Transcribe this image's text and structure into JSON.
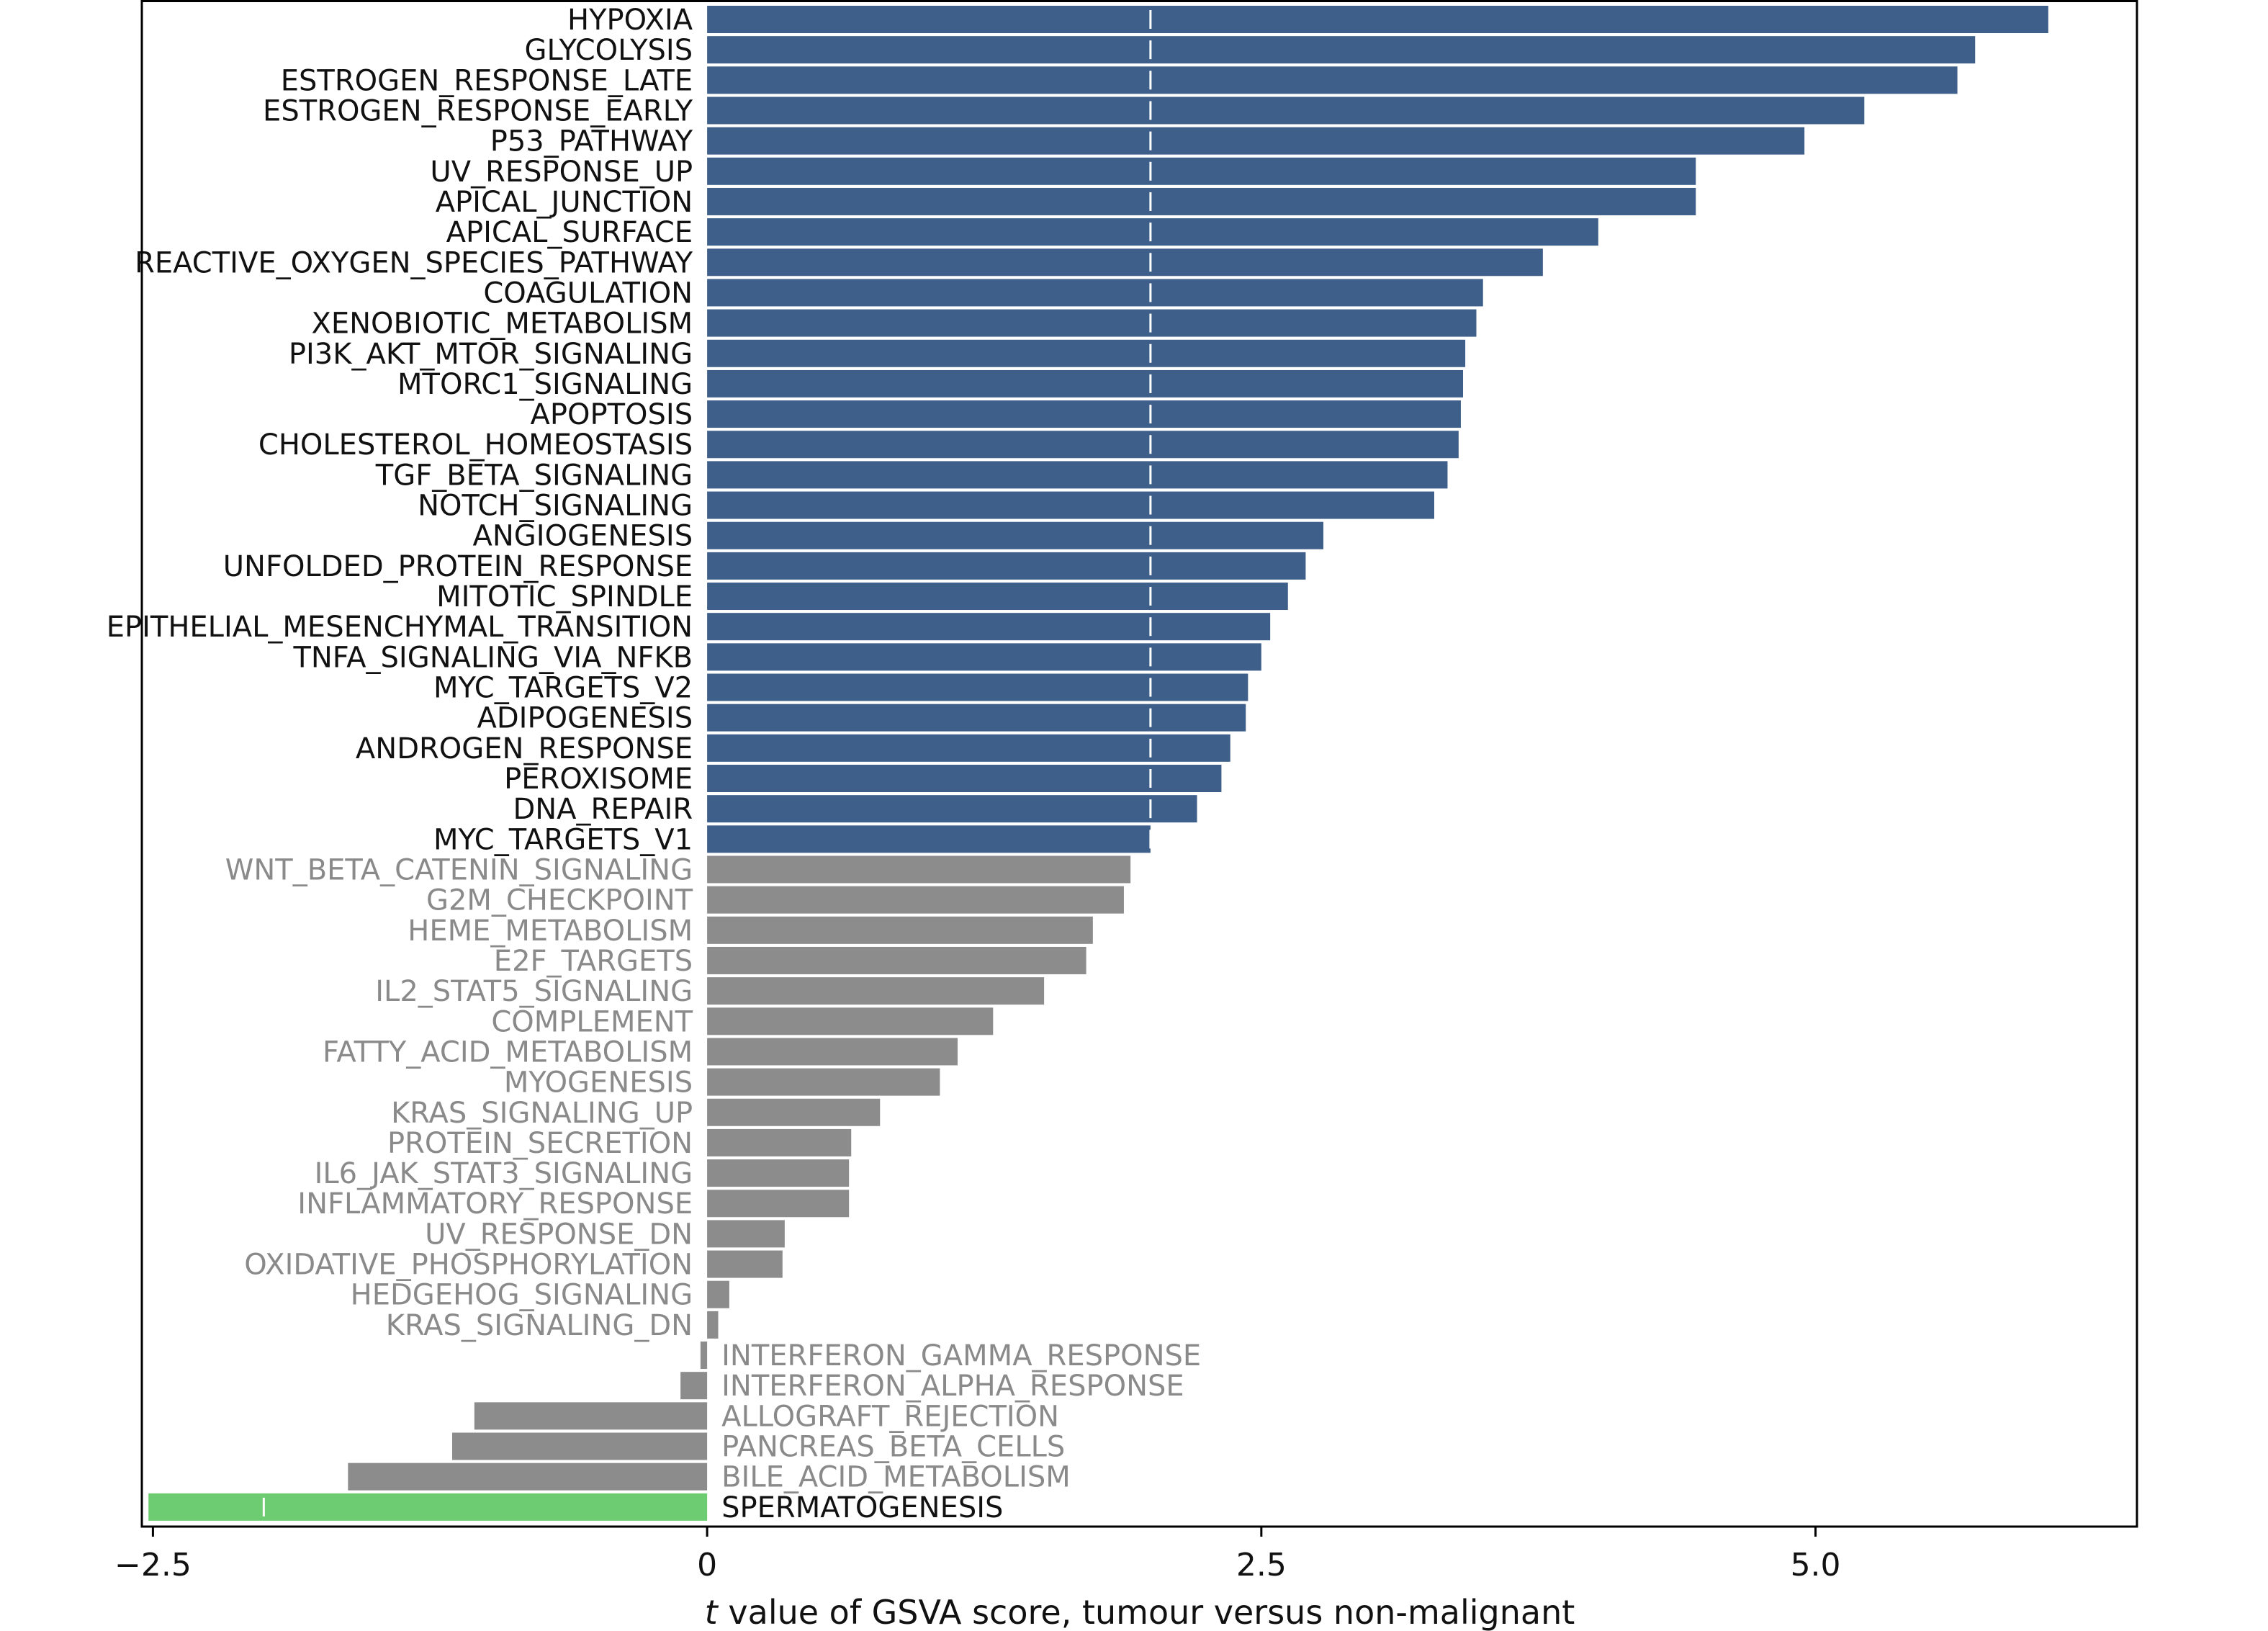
{
  "chart_data": {
    "type": "bar",
    "orientation": "horizontal",
    "title": "",
    "xlabel_prefix": "t",
    "xlabel_rest": " value of GSVA score, tumour versus non-malignant",
    "ylabel": "",
    "xlim": [
      -2.55,
      6.45
    ],
    "xticks": [
      -2.5,
      0,
      2.5,
      5.0
    ],
    "xtick_labels": [
      "−2.5",
      "0",
      "2.5",
      "5.0"
    ],
    "threshold_line": 2.0,
    "colors": {
      "significant_up": "#3e5f8a",
      "not_significant": "#8c8c8c",
      "significant_down": "#6dcc71",
      "label_significant": "#111111",
      "label_not_significant": "#8a8a8a",
      "threshold_line": "#ffffff",
      "frame": "#000000"
    },
    "categories": [
      "HYPOXIA",
      "GLYCOLYSIS",
      "ESTROGEN_RESPONSE_LATE",
      "ESTROGEN_RESPONSE_EARLY",
      "P53_PATHWAY",
      "UV_RESPONSE_UP",
      "APICAL_JUNCTION",
      "APICAL_SURFACE",
      "REACTIVE_OXYGEN_SPECIES_PATHWAY",
      "COAGULATION",
      "XENOBIOTIC_METABOLISM",
      "PI3K_AKT_MTOR_SIGNALING",
      "MTORC1_SIGNALING",
      "APOPTOSIS",
      "CHOLESTEROL_HOMEOSTASIS",
      "TGF_BETA_SIGNALING",
      "NOTCH_SIGNALING",
      "ANGIOGENESIS",
      "UNFOLDED_PROTEIN_RESPONSE",
      "MITOTIC_SPINDLE",
      "EPITHELIAL_MESENCHYMAL_TRANSITION",
      "TNFA_SIGNALING_VIA_NFKB",
      "MYC_TARGETS_V2",
      "ADIPOGENESIS",
      "ANDROGEN_RESPONSE",
      "PEROXISOME",
      "DNA_REPAIR",
      "MYC_TARGETS_V1",
      "WNT_BETA_CATENIN_SIGNALING",
      "G2M_CHECKPOINT",
      "HEME_METABOLISM",
      "E2F_TARGETS",
      "IL2_STAT5_SIGNALING",
      "COMPLEMENT",
      "FATTY_ACID_METABOLISM",
      "MYOGENESIS",
      "KRAS_SIGNALING_UP",
      "PROTEIN_SECRETION",
      "IL6_JAK_STAT3_SIGNALING",
      "INFLAMMATORY_RESPONSE",
      "UV_RESPONSE_DN",
      "OXIDATIVE_PHOSPHORYLATION",
      "HEDGEHOG_SIGNALING",
      "KRAS_SIGNALING_DN",
      "INTERFERON_GAMMA_RESPONSE",
      "INTERFERON_ALPHA_RESPONSE",
      "ALLOGRAFT_REJECTION",
      "PANCREAS_BETA_CELLS",
      "BILE_ACID_METABOLISM",
      "SPERMATOGENESIS"
    ],
    "values": [
      6.05,
      5.72,
      5.64,
      5.22,
      4.95,
      4.46,
      4.46,
      4.02,
      3.77,
      3.5,
      3.47,
      3.42,
      3.41,
      3.4,
      3.39,
      3.34,
      3.28,
      2.78,
      2.7,
      2.62,
      2.54,
      2.5,
      2.44,
      2.43,
      2.36,
      2.32,
      2.21,
      2.0,
      1.91,
      1.88,
      1.74,
      1.71,
      1.52,
      1.29,
      1.13,
      1.05,
      0.78,
      0.65,
      0.64,
      0.64,
      0.35,
      0.34,
      0.1,
      0.05,
      -0.03,
      -0.12,
      -1.05,
      -1.15,
      -1.62,
      -2.52
    ],
    "groups": [
      "up",
      "up",
      "up",
      "up",
      "up",
      "up",
      "up",
      "up",
      "up",
      "up",
      "up",
      "up",
      "up",
      "up",
      "up",
      "up",
      "up",
      "up",
      "up",
      "up",
      "up",
      "up",
      "up",
      "up",
      "up",
      "up",
      "up",
      "up",
      "ns",
      "ns",
      "ns",
      "ns",
      "ns",
      "ns",
      "ns",
      "ns",
      "ns",
      "ns",
      "ns",
      "ns",
      "ns",
      "ns",
      "ns",
      "ns",
      "ns",
      "ns",
      "ns",
      "ns",
      "ns",
      "down"
    ]
  }
}
